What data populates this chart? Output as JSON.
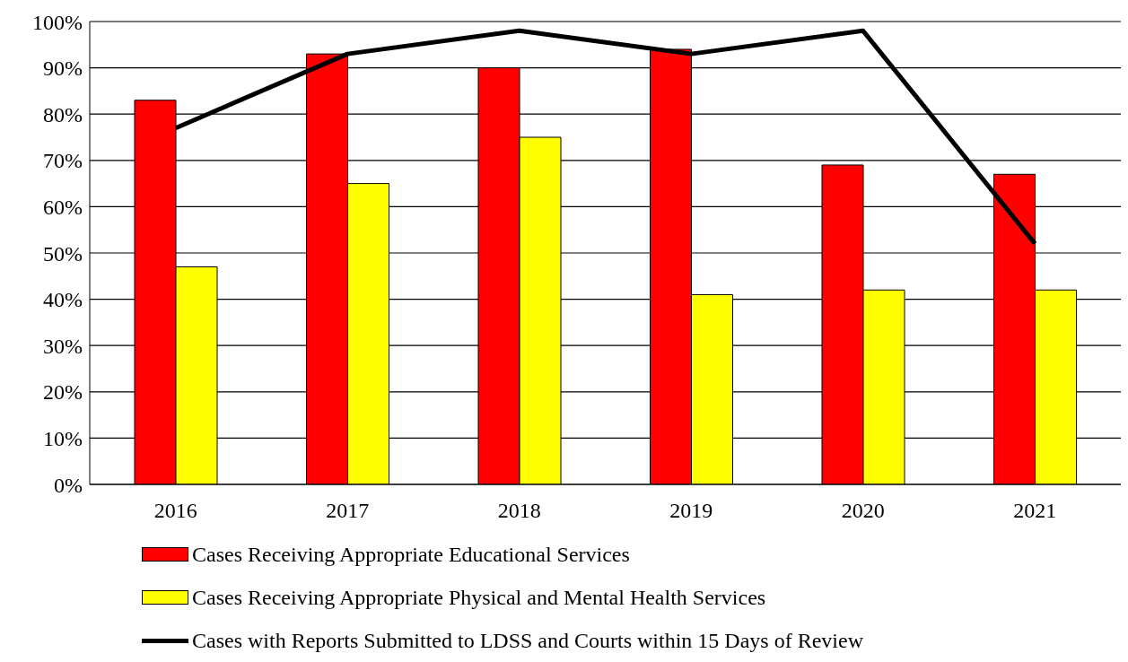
{
  "chart_data": {
    "type": "bar",
    "categories": [
      "2016",
      "2017",
      "2018",
      "2019",
      "2020",
      "2021"
    ],
    "series": [
      {
        "name": "Cases Receiving Appropriate Educational Services",
        "color": "#ff0000",
        "values": [
          83,
          93,
          90,
          94,
          69,
          67
        ]
      },
      {
        "name": "Cases Receiving Appropriate Physical and Mental Health Services",
        "color": "#ffff00",
        "values": [
          47,
          65,
          75,
          41,
          42,
          42
        ]
      },
      {
        "name": "Cases with Reports Submitted to LDSS and Courts within 15 Days of Review",
        "type": "line",
        "color": "#000000",
        "values": [
          77,
          93,
          98,
          93,
          98,
          52
        ]
      }
    ],
    "ylim": [
      0,
      100
    ],
    "yticks": [
      {
        "value": 0,
        "label": "0%"
      },
      {
        "value": 10,
        "label": "10%"
      },
      {
        "value": 20,
        "label": "20%"
      },
      {
        "value": 30,
        "label": "30%"
      },
      {
        "value": 40,
        "label": "40%"
      },
      {
        "value": 50,
        "label": "50%"
      },
      {
        "value": 60,
        "label": "60%"
      },
      {
        "value": 70,
        "label": "70%"
      },
      {
        "value": 80,
        "label": "80%"
      },
      {
        "value": 90,
        "label": "90%"
      },
      {
        "value": 100,
        "label": "100%"
      }
    ],
    "grid": "y",
    "legend": "bottom",
    "marker": "none",
    "line_style": "solid"
  }
}
